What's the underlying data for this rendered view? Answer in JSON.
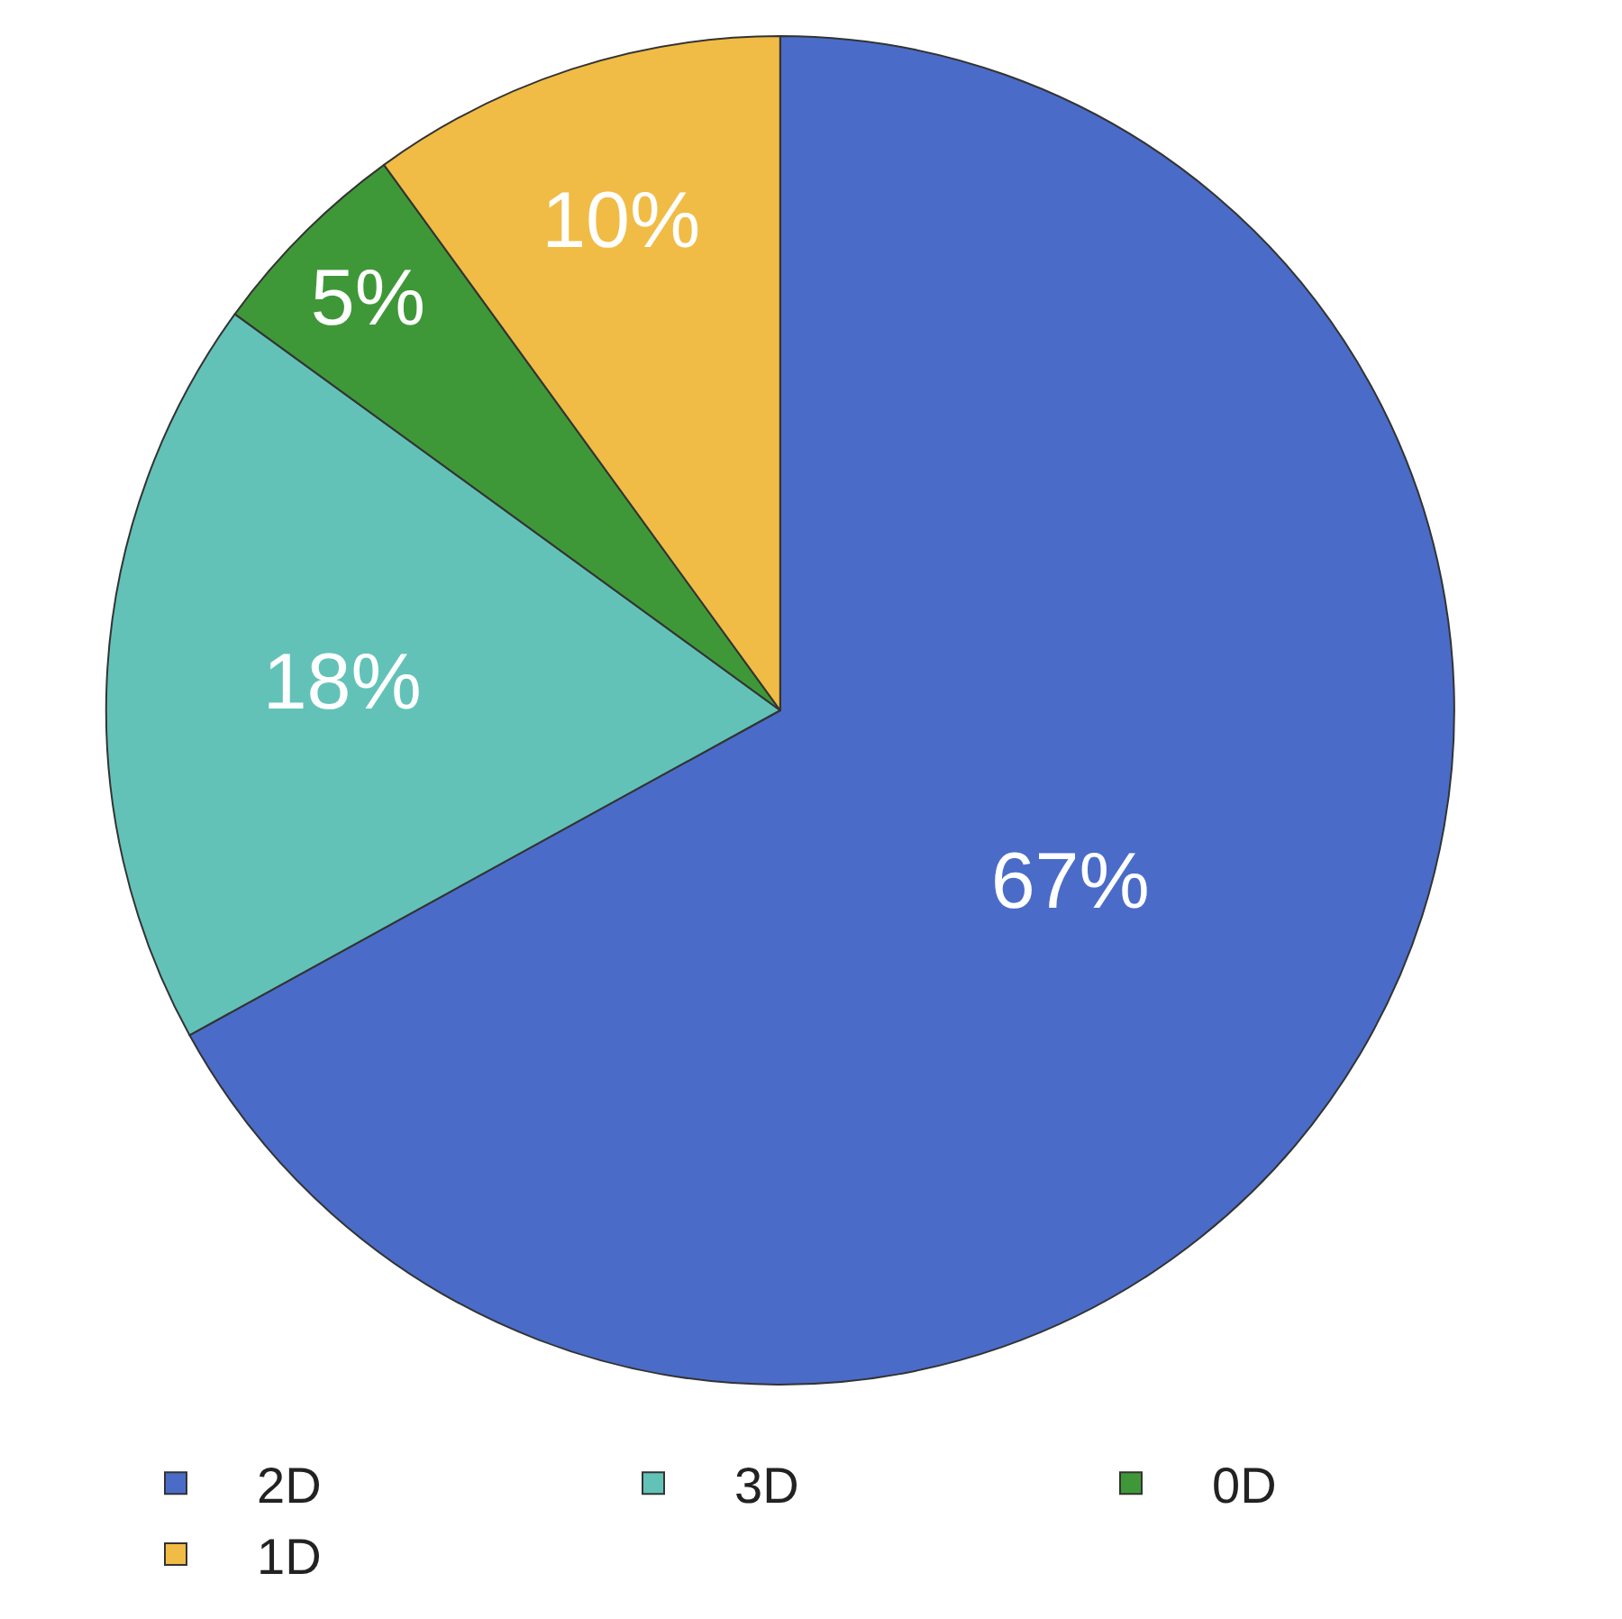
{
  "chart_data": {
    "type": "pie",
    "categories": [
      "2D",
      "3D",
      "0D",
      "1D"
    ],
    "values": [
      67,
      18,
      5,
      10
    ],
    "value_labels": [
      "67%",
      "18%",
      "5%",
      "10%"
    ],
    "colors": [
      "#4a6cc8",
      "#62c2b8",
      "#3f9838",
      "#f0bc45"
    ],
    "legend": "bottom"
  }
}
